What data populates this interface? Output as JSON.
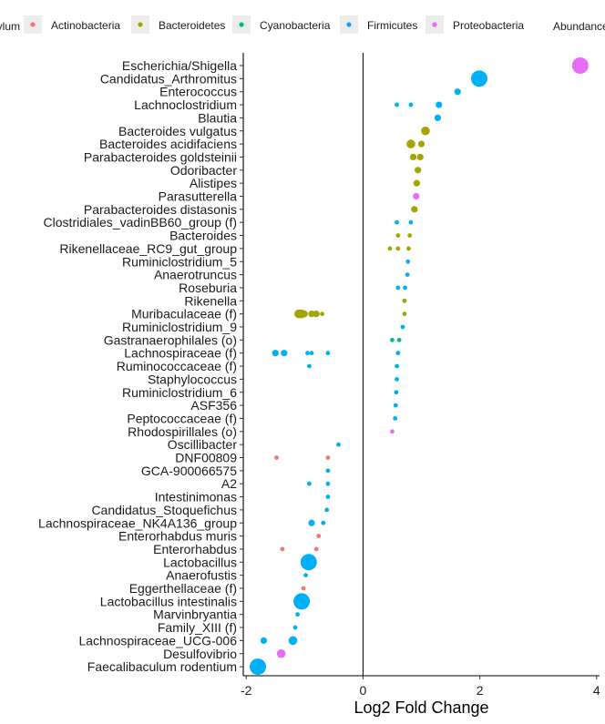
{
  "chart_data": {
    "type": "scatter",
    "title": "",
    "xlabel": "Log2 Fold Change",
    "ylabel": "",
    "xlim": [
      -2.05,
      4.05
    ],
    "xticks": [
      -2,
      0,
      2,
      4
    ],
    "grid": false,
    "legend_position": "top",
    "legend_color_title": "Phylum",
    "legend_size_title": "Abundance",
    "phylum_colors": {
      "Actinobacteria": "#F8766D",
      "Bacteroidetes": "#A3A500",
      "Cyanobacteria": "#00BF7D",
      "Firmicutes": "#00B0F6",
      "Proteobacteria": "#E76BF3"
    },
    "phyla": [
      "Actinobacteria",
      "Bacteroidetes",
      "Cyanobacteria",
      "Firmicutes",
      "Proteobacteria"
    ],
    "categories": [
      "Escherichia/Shigella",
      "Candidatus_Arthromitus",
      "Enterococcus",
      "Lachnoclostridium",
      "Blautia",
      "Bacteroides vulgatus",
      "Bacteroides acidifaciens",
      "Parabacteroides goldsteinii",
      "Odoribacter",
      "Alistipes",
      "Parasutterella",
      "Parabacteroides distasonis",
      "Clostridiales_vadinBB60_group (f)",
      "Bacteroides",
      "Rikenellaceae_RC9_gut_group",
      "Ruminiclostridium_5",
      "Anaerotruncus",
      "Roseburia",
      "Rikenella",
      "Muribaculaceae (f)",
      "Ruminiclostridium_9",
      "Gastranaerophilales (o)",
      "Lachnospiraceae (f)",
      "Ruminococcaceae (f)",
      "Staphylococcus",
      "Ruminiclostridium_6",
      "ASF356",
      "Peptococcaceae (f)",
      "Rhodospirillales (o)",
      "Oscillibacter",
      "DNF00809",
      "GCA-900066575",
      "A2",
      "Intestinimonas",
      "Candidatus_Stoquefichus",
      "Lachnospiraceae_NK4A136_group",
      "Enterorhabdus muris",
      "Enterorhabdus",
      "Lactobacillus",
      "Anaerofustis",
      "Eggerthellaceae (f)",
      "Lactobacillus intestinalis",
      "Marvinbryantia",
      "Family_XIII (f)",
      "Lachnospiraceae_UCG-006",
      "Desulfovibrio",
      "Faecalibaculum rodentium"
    ],
    "points": [
      {
        "category": "Escherichia/Shigella",
        "phylum": "Proteobacteria",
        "x": 3.72,
        "abundance": 5
      },
      {
        "category": "Candidatus_Arthromitus",
        "phylum": "Firmicutes",
        "x": 1.99,
        "abundance": 5
      },
      {
        "category": "Enterococcus",
        "phylum": "Firmicutes",
        "x": 1.62,
        "abundance": 2
      },
      {
        "category": "Lachnoclostridium",
        "phylum": "Firmicutes",
        "x": 1.3,
        "abundance": 2
      },
      {
        "category": "Lachnoclostridium",
        "phylum": "Firmicutes",
        "x": 0.82,
        "abundance": 1
      },
      {
        "category": "Lachnoclostridium",
        "phylum": "Firmicutes",
        "x": 0.58,
        "abundance": 1
      },
      {
        "category": "Blautia",
        "phylum": "Firmicutes",
        "x": 1.28,
        "abundance": 2
      },
      {
        "category": "Bacteroides vulgatus",
        "phylum": "Bacteroidetes",
        "x": 1.07,
        "abundance": 3
      },
      {
        "category": "Bacteroides acidifaciens",
        "phylum": "Bacteroidetes",
        "x": 1.0,
        "abundance": 2
      },
      {
        "category": "Bacteroides acidifaciens",
        "phylum": "Bacteroidetes",
        "x": 0.82,
        "abundance": 3
      },
      {
        "category": "Parabacteroides goldsteinii",
        "phylum": "Bacteroidetes",
        "x": 0.98,
        "abundance": 2
      },
      {
        "category": "Parabacteroides goldsteinii",
        "phylum": "Bacteroidetes",
        "x": 0.86,
        "abundance": 2
      },
      {
        "category": "Odoribacter",
        "phylum": "Bacteroidetes",
        "x": 0.94,
        "abundance": 2
      },
      {
        "category": "Alistipes",
        "phylum": "Bacteroidetes",
        "x": 0.92,
        "abundance": 2
      },
      {
        "category": "Parasutterella",
        "phylum": "Proteobacteria",
        "x": 0.91,
        "abundance": 2
      },
      {
        "category": "Parabacteroides distasonis",
        "phylum": "Bacteroidetes",
        "x": 0.88,
        "abundance": 2
      },
      {
        "category": "Clostridiales_vadinBB60_group (f)",
        "phylum": "Firmicutes",
        "x": 0.82,
        "abundance": 1
      },
      {
        "category": "Clostridiales_vadinBB60_group (f)",
        "phylum": "Firmicutes",
        "x": 0.58,
        "abundance": 1
      },
      {
        "category": "Bacteroides",
        "phylum": "Bacteroidetes",
        "x": 0.8,
        "abundance": 1
      },
      {
        "category": "Bacteroides",
        "phylum": "Bacteroidetes",
        "x": 0.6,
        "abundance": 1
      },
      {
        "category": "Rikenellaceae_RC9_gut_group",
        "phylum": "Bacteroidetes",
        "x": 0.78,
        "abundance": 1
      },
      {
        "category": "Rikenellaceae_RC9_gut_group",
        "phylum": "Bacteroidetes",
        "x": 0.6,
        "abundance": 1
      },
      {
        "category": "Rikenellaceae_RC9_gut_group",
        "phylum": "Bacteroidetes",
        "x": 0.46,
        "abundance": 1
      },
      {
        "category": "Ruminiclostridium_5",
        "phylum": "Firmicutes",
        "x": 0.77,
        "abundance": 1
      },
      {
        "category": "Anaerotruncus",
        "phylum": "Firmicutes",
        "x": 0.76,
        "abundance": 1
      },
      {
        "category": "Roseburia",
        "phylum": "Firmicutes",
        "x": 0.72,
        "abundance": 1
      },
      {
        "category": "Roseburia",
        "phylum": "Firmicutes",
        "x": 0.6,
        "abundance": 1
      },
      {
        "category": "Rikenella",
        "phylum": "Bacteroidetes",
        "x": 0.71,
        "abundance": 1
      },
      {
        "category": "Muribaculaceae (f)",
        "phylum": "Bacteroidetes",
        "x": -1.1,
        "abundance": 3
      },
      {
        "category": "Muribaculaceae (f)",
        "phylum": "Bacteroidetes",
        "x": -1.05,
        "abundance": 3
      },
      {
        "category": "Muribaculaceae (f)",
        "phylum": "Bacteroidetes",
        "x": -1.0,
        "abundance": 2
      },
      {
        "category": "Muribaculaceae (f)",
        "phylum": "Bacteroidetes",
        "x": -0.88,
        "abundance": 2
      },
      {
        "category": "Muribaculaceae (f)",
        "phylum": "Bacteroidetes",
        "x": -0.8,
        "abundance": 2
      },
      {
        "category": "Muribaculaceae (f)",
        "phylum": "Bacteroidetes",
        "x": -0.7,
        "abundance": 1
      },
      {
        "category": "Muribaculaceae (f)",
        "phylum": "Bacteroidetes",
        "x": 0.71,
        "abundance": 1
      },
      {
        "category": "Ruminiclostridium_9",
        "phylum": "Firmicutes",
        "x": 0.68,
        "abundance": 1
      },
      {
        "category": "Gastranaerophilales (o)",
        "phylum": "Cyanobacteria",
        "x": 0.62,
        "abundance": 1
      },
      {
        "category": "Gastranaerophilales (o)",
        "phylum": "Cyanobacteria",
        "x": 0.5,
        "abundance": 1
      },
      {
        "category": "Lachnospiraceae (f)",
        "phylum": "Firmicutes",
        "x": -1.5,
        "abundance": 2
      },
      {
        "category": "Lachnospiraceae (f)",
        "phylum": "Firmicutes",
        "x": -1.35,
        "abundance": 2
      },
      {
        "category": "Lachnospiraceae (f)",
        "phylum": "Firmicutes",
        "x": -0.95,
        "abundance": 1
      },
      {
        "category": "Lachnospiraceae (f)",
        "phylum": "Firmicutes",
        "x": -0.88,
        "abundance": 1
      },
      {
        "category": "Lachnospiraceae (f)",
        "phylum": "Firmicutes",
        "x": -0.6,
        "abundance": 1
      },
      {
        "category": "Lachnospiraceae (f)",
        "phylum": "Firmicutes",
        "x": 0.6,
        "abundance": 1
      },
      {
        "category": "Ruminococcaceae (f)",
        "phylum": "Firmicutes",
        "x": -0.92,
        "abundance": 1
      },
      {
        "category": "Ruminococcaceae (f)",
        "phylum": "Firmicutes",
        "x": 0.58,
        "abundance": 1
      },
      {
        "category": "Staphylococcus",
        "phylum": "Firmicutes",
        "x": 0.58,
        "abundance": 1
      },
      {
        "category": "Ruminiclostridium_6",
        "phylum": "Firmicutes",
        "x": 0.57,
        "abundance": 1
      },
      {
        "category": "ASF356",
        "phylum": "Firmicutes",
        "x": 0.56,
        "abundance": 1
      },
      {
        "category": "Peptococcaceae (f)",
        "phylum": "Firmicutes",
        "x": 0.55,
        "abundance": 1
      },
      {
        "category": "Rhodospirillales (o)",
        "phylum": "Proteobacteria",
        "x": 0.5,
        "abundance": 1
      },
      {
        "category": "Oscillibacter",
        "phylum": "Firmicutes",
        "x": -0.42,
        "abundance": 1
      },
      {
        "category": "DNF00809",
        "phylum": "Actinobacteria",
        "x": -1.48,
        "abundance": 1
      },
      {
        "category": "DNF00809",
        "phylum": "Actinobacteria",
        "x": -0.6,
        "abundance": 1
      },
      {
        "category": "GCA-900066575",
        "phylum": "Firmicutes",
        "x": -0.6,
        "abundance": 1
      },
      {
        "category": "A2",
        "phylum": "Firmicutes",
        "x": -0.92,
        "abundance": 1
      },
      {
        "category": "A2",
        "phylum": "Firmicutes",
        "x": -0.6,
        "abundance": 1
      },
      {
        "category": "Intestinimonas",
        "phylum": "Firmicutes",
        "x": -0.6,
        "abundance": 1
      },
      {
        "category": "Candidatus_Stoquefichus",
        "phylum": "Firmicutes",
        "x": -0.62,
        "abundance": 1
      },
      {
        "category": "Lachnospiraceae_NK4A136_group",
        "phylum": "Firmicutes",
        "x": -0.88,
        "abundance": 2
      },
      {
        "category": "Lachnospiraceae_NK4A136_group",
        "phylum": "Firmicutes",
        "x": -0.68,
        "abundance": 1
      },
      {
        "category": "Enterorhabdus muris",
        "phylum": "Actinobacteria",
        "x": -0.76,
        "abundance": 1
      },
      {
        "category": "Enterorhabdus",
        "phylum": "Actinobacteria",
        "x": -1.38,
        "abundance": 1
      },
      {
        "category": "Enterorhabdus",
        "phylum": "Actinobacteria",
        "x": -0.8,
        "abundance": 1
      },
      {
        "category": "Lactobacillus",
        "phylum": "Firmicutes",
        "x": -0.93,
        "abundance": 5
      },
      {
        "category": "Anaerofustis",
        "phylum": "Firmicutes",
        "x": -0.98,
        "abundance": 1
      },
      {
        "category": "Eggerthellaceae (f)",
        "phylum": "Actinobacteria",
        "x": -1.02,
        "abundance": 1
      },
      {
        "category": "Lactobacillus intestinalis",
        "phylum": "Firmicutes",
        "x": -1.05,
        "abundance": 5
      },
      {
        "category": "Marvinbryantia",
        "phylum": "Firmicutes",
        "x": -1.12,
        "abundance": 1
      },
      {
        "category": "Family_XIII (f)",
        "phylum": "Firmicutes",
        "x": -1.16,
        "abundance": 1
      },
      {
        "category": "Lachnospiraceae_UCG-006",
        "phylum": "Firmicutes",
        "x": -1.7,
        "abundance": 2
      },
      {
        "category": "Lachnospiraceae_UCG-006",
        "phylum": "Firmicutes",
        "x": -1.2,
        "abundance": 3
      },
      {
        "category": "Desulfovibrio",
        "phylum": "Proteobacteria",
        "x": -1.4,
        "abundance": 3
      },
      {
        "category": "Faecalibaculum rodentium",
        "phylum": "Firmicutes",
        "x": -1.8,
        "abundance": 5
      }
    ]
  }
}
